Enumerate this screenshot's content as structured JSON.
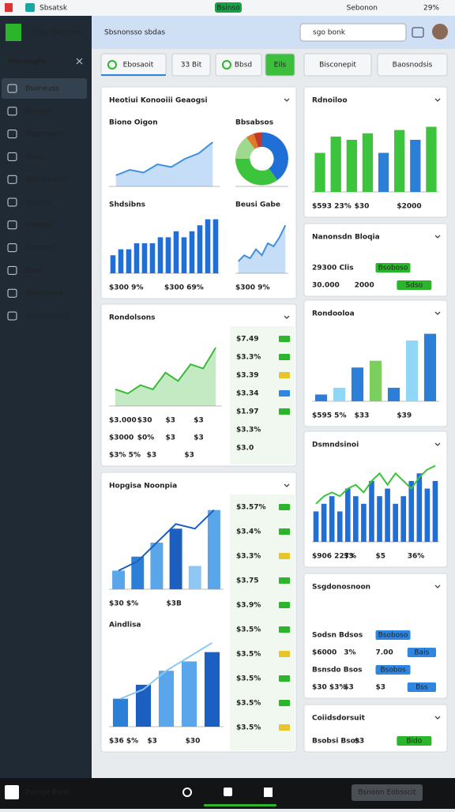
{
  "status": {
    "app": "Sbsatsk",
    "center": "Bsinso",
    "carrier": "Sebonon",
    "battery": "29%"
  },
  "header": {
    "brand": "Smai Ekonoge",
    "title": "Sbsnonsso sbdas",
    "search": "sgo bonk"
  },
  "sidebar": {
    "title": "Bnnongin",
    "items": [
      "Bsoneuss",
      "Bhonos",
      "Sopnnepin",
      "Biena",
      "Besnbsioler",
      "Siusnss",
      "Bsmgeit",
      "Sconnss",
      "Baoe",
      "Bsuichsois",
      "Nsnishbsnon"
    ]
  },
  "tabs": [
    "Ebosaoit",
    "33 Bit",
    "Bbsd",
    "Eils",
    "Bisconepit",
    "Baosnodsis"
  ],
  "cards": [
    {
      "title": "Heotiui Konooiii Geaogsi",
      "panels": [
        {
          "label": "Biono Oigon",
          "chart": {
            "type": "area",
            "color": "#3f8fe0",
            "values": [
              2,
              3,
              2.5,
              4,
              3.5,
              5,
              6,
              8
            ],
            "ylim": [
              0,
              10
            ]
          }
        },
        {
          "label": "Bbsabsos",
          "chart": {
            "type": "pie",
            "values": [
              40,
              35,
              15,
              5,
              5
            ],
            "colors": [
              "#1f6fd6",
              "#3cc43c",
              "#9ed98f",
              "#e07a2a",
              "#c0392b"
            ]
          }
        },
        {
          "label": "Shdsibns",
          "chart": {
            "type": "bar",
            "color": "#1f6fd6",
            "values": [
              3,
              4,
              4,
              5,
              5,
              5,
              6,
              6,
              7,
              6,
              7,
              8,
              9,
              9
            ],
            "ylim": [
              0,
              10
            ]
          },
          "rows": [
            [
              {
                "text": "$300 9%",
                "color": "#2bb52b"
              },
              {
                "text": "$300 69%",
                "color": "#2bb52b"
              }
            ]
          ]
        },
        {
          "label": "Beusi Gabe",
          "chart": {
            "type": "area",
            "color": "#3f8fe0",
            "values": [
              2,
              3,
              2.5,
              4,
              3,
              5,
              4.5,
              6,
              8
            ],
            "ylim": [
              0,
              10
            ]
          },
          "rows": [
            [
              {
                "text": "$300 9%",
                "color": "#e9c42a"
              }
            ]
          ]
        }
      ]
    },
    {
      "title": "Rdnoiloo",
      "chart": {
        "type": "bar",
        "colors": [
          "#3cc43c",
          "#3cc43c",
          "#3cc43c",
          "#3cc43c",
          "#2c7fd6",
          "#3cc43c",
          "#2c7fd6",
          "#3cc43c"
        ],
        "values": [
          6,
          8.5,
          8,
          9,
          6,
          9.5,
          8,
          10
        ],
        "ylim": [
          0,
          12
        ]
      },
      "rows": [
        [
          {
            "text": "$593 23%",
            "color": "#2bb52b"
          },
          "$30",
          "$2000"
        ]
      ]
    },
    {
      "title": "Nanonsdn Bloqia",
      "rows": [
        [
          "29300 Clis",
          {
            "text": "Bsoboso",
            "badge": "#2bb52b"
          }
        ],
        [
          "30.000",
          "2000",
          {
            "text": "Sdso",
            "badge": "#2bb52b"
          }
        ]
      ]
    },
    {
      "title": "Rondooloa",
      "chart": {
        "type": "bar",
        "colors": [
          "#2c7fd6",
          "#8fd7f5",
          "#2c7fd6",
          "#7ccf5c",
          "#2c7fd6",
          "#8fd7f5",
          "#2c7fd6"
        ],
        "values": [
          1,
          2,
          5,
          6,
          2,
          9,
          10
        ],
        "ylim": [
          0,
          11
        ]
      },
      "rows": [
        [
          {
            "text": "$595 5%",
            "color": "#2c7fd6"
          },
          "$33",
          "$39"
        ]
      ]
    },
    {
      "title": "Rondolsons",
      "chart": {
        "type": "area",
        "color": "#3cb93c",
        "values": [
          2,
          1.5,
          2.5,
          2,
          4,
          3,
          5,
          4.5,
          7
        ],
        "ylim": [
          0,
          9
        ]
      },
      "side": [
        {
          "text": "$7.49",
          "badge": "#2bb52b"
        },
        {
          "text": "$3.3%",
          "badge": "#2bb52b"
        },
        {
          "text": "$3.39",
          "badge": "#e9c42a"
        },
        {
          "text": "$3.34",
          "badge": "#2f86e0"
        },
        {
          "text": "$1.97",
          "badge": "#2bb52b"
        },
        {
          "text": "$3.3%"
        },
        {
          "text": "$3.0"
        }
      ],
      "rows": [
        [
          "$3.000",
          "$30",
          {
            "text": "$3",
            "color": "#e9c42a"
          },
          "$3"
        ],
        [
          "$3000",
          "$0%",
          {
            "text": "$3",
            "color": "#e9c42a"
          },
          "$3"
        ],
        [
          {
            "text": "$3% 5%",
            "color": "#2bb52b"
          },
          {
            "text": "$3",
            "color": "#e9c42a"
          },
          "$3"
        ]
      ]
    },
    {
      "title": "Dsmndsinoi",
      "chart": {
        "type": "combo",
        "color": "#1f6fd6",
        "line_color": "#3cc43c",
        "values": [
          4,
          5,
          6,
          4,
          7,
          6,
          5,
          8,
          6,
          7,
          5,
          6,
          8,
          9,
          7,
          8
        ],
        "line": [
          5,
          6,
          6.5,
          6,
          7,
          7.5,
          6.5,
          8,
          9,
          7.5,
          9,
          8,
          7,
          8.5,
          9.5,
          10
        ],
        "ylim": [
          0,
          11
        ]
      },
      "rows": [
        [
          {
            "text": "$906 227%",
            "color": "#2bb52b"
          },
          "$3",
          {
            "text": "$5",
            "color": "#e9c42a"
          },
          "36%"
        ]
      ]
    },
    {
      "title": "Hopgisa Noonpia",
      "panels": [
        {
          "chart": {
            "type": "combo",
            "colors": [
              "#5aa6ea",
              "#2c7fd6",
              "#5aa6ea",
              "#1b5fc1",
              "#8fc7f2",
              "#5aa6ea"
            ],
            "values": [
              2,
              3.5,
              5,
              6.5,
              2.5,
              8.5
            ],
            "line": [
              2,
              3,
              5,
              7,
              6.5,
              8.5
            ],
            "line_color": "#1b5fc1",
            "ylim": [
              0,
              10
            ]
          },
          "rows": [
            [
              "$30 $%",
              "$3B"
            ]
          ]
        },
        {
          "label": "Aindlisa",
          "chart": {
            "type": "combo",
            "colors": [
              "#2c7fd6",
              "#1b5fc1",
              "#5aa6ea",
              "#5aa6ea",
              "#1b5fc1"
            ],
            "values": [
              3,
              4.5,
              6,
              7,
              8
            ],
            "line": [
              3,
              4,
              6,
              7.5,
              9
            ],
            "line_color": "#8fc7f2",
            "ylim": [
              0,
              10
            ]
          },
          "rows": [
            [
              {
                "text": "$36 $%",
                "color": "#2bb52b"
              },
              "$3",
              "$30"
            ]
          ]
        }
      ],
      "side": [
        {
          "text": "$3.57%",
          "badge": "#2bb52b"
        },
        {
          "text": "$3.4%",
          "badge": "#2bb52b"
        },
        {
          "text": "$3.3%",
          "badge": "#e9c42a"
        },
        {
          "text": "$3.75",
          "badge": "#2bb52b"
        },
        {
          "text": "$3.9%",
          "badge": "#2bb52b"
        },
        {
          "text": "$3.5%",
          "badge": "#2bb52b"
        },
        {
          "text": "$3.5%",
          "badge": "#e9c42a"
        },
        {
          "text": "$3.5%",
          "badge": "#2bb52b"
        },
        {
          "text": "$3.5%",
          "badge": "#2bb52b"
        },
        {
          "text": "$3.5%",
          "badge": "#e9c42a"
        }
      ]
    },
    {
      "title": "Ssgdonosnoon",
      "rows": [
        [
          "Sodsn Bdsos",
          {
            "text": "Bsoboso",
            "badge": "#2f86e0"
          }
        ],
        [
          "$6000",
          "3%",
          "7.00",
          {
            "text": "Bais",
            "badge": "#2f86e0"
          }
        ],
        [
          "Bsnsdo Bsos",
          {
            "text": "Bsobos",
            "badge": "#2f86e0"
          }
        ],
        [
          {
            "text": "$30 $3%",
            "color": "#e9a82a"
          },
          "$3",
          "$3",
          {
            "text": "Bss",
            "badge": "#2f86e0"
          }
        ]
      ]
    },
    {
      "title": "Coiidsdorsuit",
      "rows": [
        [
          "Bsobsi Bsos",
          "$3",
          {
            "text": "Bido",
            "badge": "#2bb52b"
          }
        ]
      ]
    }
  ],
  "bottom": {
    "label": "Bsmge Bsno",
    "button": "Bsnoon Eobsscit"
  }
}
